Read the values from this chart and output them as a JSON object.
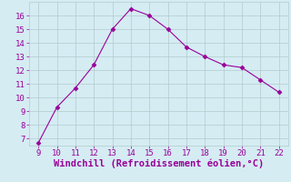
{
  "x": [
    9,
    10,
    11,
    12,
    13,
    14,
    15,
    16,
    17,
    18,
    19,
    20,
    21,
    22
  ],
  "y": [
    6.7,
    9.3,
    10.7,
    12.4,
    15.0,
    16.5,
    16.0,
    15.0,
    13.7,
    13.0,
    12.4,
    12.2,
    11.3,
    10.4
  ],
  "line_color": "#990099",
  "marker": "D",
  "marker_size": 2.5,
  "linewidth": 0.8,
  "xlabel": "Windchill (Refroidissement éolien,°C)",
  "xlabel_fontsize": 7.5,
  "xlim": [
    8.5,
    22.5
  ],
  "ylim": [
    6.5,
    17.0
  ],
  "xticks": [
    9,
    10,
    11,
    12,
    13,
    14,
    15,
    16,
    17,
    18,
    19,
    20,
    21,
    22
  ],
  "yticks": [
    7,
    8,
    9,
    10,
    11,
    12,
    13,
    14,
    15,
    16
  ],
  "tick_fontsize": 6.5,
  "background_color": "#d5ecf3",
  "grid_color": "#b0cccc",
  "grid_linewidth": 0.5,
  "label_color": "#990099",
  "xlabel_color": "#990099"
}
